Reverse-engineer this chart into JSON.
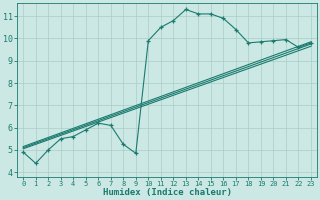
{
  "xlabel": "Humidex (Indice chaleur)",
  "background_color": "#cce8e4",
  "grid_color": "#aaccc8",
  "line_color": "#1a7a6e",
  "xlim": [
    -0.5,
    23.5
  ],
  "ylim": [
    3.8,
    11.6
  ],
  "xticks": [
    0,
    1,
    2,
    3,
    4,
    5,
    6,
    7,
    8,
    9,
    10,
    11,
    12,
    13,
    14,
    15,
    16,
    17,
    18,
    19,
    20,
    21,
    22,
    23
  ],
  "yticks": [
    4,
    5,
    6,
    7,
    8,
    9,
    10,
    11
  ],
  "main_line_x": [
    0,
    1,
    2,
    3,
    4,
    5,
    6,
    7,
    8,
    9,
    10,
    11,
    12,
    13,
    14,
    15,
    16,
    17,
    18,
    19,
    20,
    21,
    22,
    23
  ],
  "main_line_y": [
    4.9,
    4.4,
    5.0,
    5.5,
    5.6,
    5.9,
    6.2,
    6.1,
    5.25,
    4.85,
    9.9,
    10.5,
    10.8,
    11.3,
    11.1,
    11.1,
    10.9,
    10.4,
    9.8,
    9.85,
    9.9,
    9.95,
    9.6,
    9.8
  ],
  "trend1_x": [
    0,
    23
  ],
  "trend1_y": [
    5.05,
    9.65
  ],
  "trend2_x": [
    0,
    23
  ],
  "trend2_y": [
    5.1,
    9.75
  ],
  "trend3_x": [
    0,
    23
  ],
  "trend3_y": [
    5.15,
    9.85
  ]
}
